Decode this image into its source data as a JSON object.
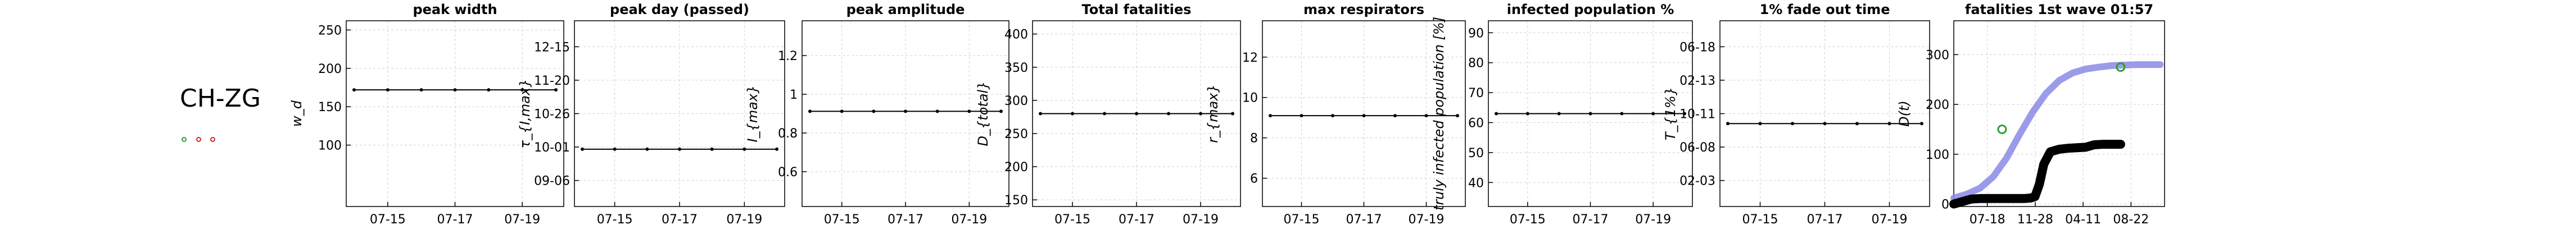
{
  "region": "CH-ZG",
  "legend_markers": [
    {
      "name": "marker-green",
      "color": "#2ca02c"
    },
    {
      "name": "marker-red-1",
      "color": "#d62728"
    },
    {
      "name": "marker-red-2",
      "color": "#d62728"
    }
  ],
  "chart_data": [
    {
      "type": "line",
      "title": "peak width",
      "ylabel": "w_d",
      "x": [
        "07-14",
        "07-15",
        "07-16",
        "07-17",
        "07-18",
        "07-19",
        "07-20"
      ],
      "xticks": [
        "07-15",
        "07-17",
        "07-19"
      ],
      "yticks": [
        100,
        150,
        200,
        250
      ],
      "ylim": [
        20,
        262
      ],
      "series": [
        {
          "values": [
            172,
            172,
            172,
            172,
            172,
            172,
            172
          ]
        }
      ]
    },
    {
      "type": "line",
      "title": "peak day (passed)",
      "ylabel": "τ_{I,max}",
      "x": [
        "07-14",
        "07-15",
        "07-16",
        "07-17",
        "07-18",
        "07-19",
        "07-20"
      ],
      "xticks": [
        "07-15",
        "07-17",
        "07-19"
      ],
      "yticks": [
        "09-06",
        "10-01",
        "10-26",
        "11-20",
        "12-15"
      ],
      "ylim": [
        0,
        162
      ],
      "series": [
        {
          "values": [
            50,
            50,
            50,
            50,
            50,
            50,
            50
          ]
        }
      ]
    },
    {
      "type": "line",
      "title": "peak amplitude",
      "ylabel": "I_{max}",
      "x": [
        "07-14",
        "07-15",
        "07-16",
        "07-17",
        "07-18",
        "07-19",
        "07-20"
      ],
      "xticks": [
        "07-15",
        "07-17",
        "07-19"
      ],
      "yticks": [
        0.6,
        0.8,
        1.0,
        1.2
      ],
      "ylim": [
        0.42,
        1.38
      ],
      "series": [
        {
          "values": [
            0.912,
            0.912,
            0.912,
            0.912,
            0.912,
            0.912,
            0.912
          ]
        }
      ]
    },
    {
      "type": "line",
      "title": "Total fatalities",
      "ylabel": "D_{total}",
      "x": [
        "07-14",
        "07-15",
        "07-16",
        "07-17",
        "07-18",
        "07-19",
        "07-20"
      ],
      "xticks": [
        "07-15",
        "07-17",
        "07-19"
      ],
      "yticks": [
        150,
        200,
        250,
        300,
        350,
        400
      ],
      "ylim": [
        140,
        420
      ],
      "series": [
        {
          "values": [
            280,
            280,
            280,
            280,
            280,
            280,
            280
          ]
        }
      ]
    },
    {
      "type": "line",
      "title": "max respirators",
      "ylabel": "r_{max}",
      "x": [
        "07-14",
        "07-15",
        "07-16",
        "07-17",
        "07-18",
        "07-19",
        "07-20"
      ],
      "xticks": [
        "07-15",
        "07-17",
        "07-19"
      ],
      "yticks": [
        6,
        8,
        10,
        12
      ],
      "ylim": [
        4.6,
        13.8
      ],
      "series": [
        {
          "values": [
            9.1,
            9.1,
            9.1,
            9.1,
            9.1,
            9.1,
            9.1
          ]
        }
      ]
    },
    {
      "type": "line",
      "title": "infected population %",
      "ylabel": "truly infected population [%]",
      "x": [
        "07-14",
        "07-15",
        "07-16",
        "07-17",
        "07-18",
        "07-19",
        "07-20"
      ],
      "xticks": [
        "07-15",
        "07-17",
        "07-19"
      ],
      "yticks": [
        40,
        50,
        60,
        70,
        80,
        90
      ],
      "ylim": [
        32,
        94
      ],
      "series": [
        {
          "values": [
            63,
            63,
            63,
            63,
            63,
            63,
            63
          ]
        }
      ]
    },
    {
      "type": "line",
      "title": "1% fade out time",
      "ylabel": "T_{1%}",
      "x": [
        "07-14",
        "07-15",
        "07-16",
        "07-17",
        "07-18",
        "07-19",
        "07-20"
      ],
      "xticks": [
        "07-15",
        "07-17",
        "07-19"
      ],
      "yticks": [
        "02-03",
        "06-08",
        "10-11",
        "02-13",
        "06-18"
      ],
      "ylim": [
        -40,
        890
      ],
      "series": [
        {
          "values": [
            375,
            375,
            375,
            375,
            375,
            375,
            375
          ]
        }
      ]
    },
    {
      "type": "line",
      "title": "fatalities 1st wave 01:57",
      "ylabel": "D(t)",
      "xticks": [
        "07-18",
        "11-28",
        "04-11",
        "08-22"
      ],
      "yticks": [
        0,
        100,
        200,
        300
      ],
      "xlim": [
        0,
        480
      ],
      "ylim": [
        -5,
        368
      ],
      "series": [
        {
          "values_x": [
            0,
            30,
            60,
            90,
            120,
            150,
            180,
            210,
            240,
            270,
            300,
            330,
            360,
            390,
            420,
            450,
            470
          ],
          "values_y": [
            12,
            20,
            32,
            55,
            92,
            140,
            185,
            222,
            248,
            263,
            271,
            275,
            278,
            279,
            280,
            280,
            280
          ],
          "color": "#8a8ae6"
        },
        {
          "values_x": [
            0,
            20,
            40,
            60,
            80,
            100,
            120,
            140,
            160,
            175,
            185,
            195,
            205,
            220,
            240,
            260,
            280,
            300,
            320,
            340,
            360,
            380
          ],
          "values_y": [
            0,
            5,
            10,
            11,
            11,
            11,
            11,
            11,
            11,
            12,
            15,
            40,
            80,
            105,
            110,
            112,
            113,
            114,
            119,
            120,
            120,
            120
          ],
          "color": "#000000"
        },
        {
          "values_x": [
            110,
            380
          ],
          "values_y": [
            150,
            275
          ],
          "color": "#2ca02c"
        }
      ]
    }
  ]
}
